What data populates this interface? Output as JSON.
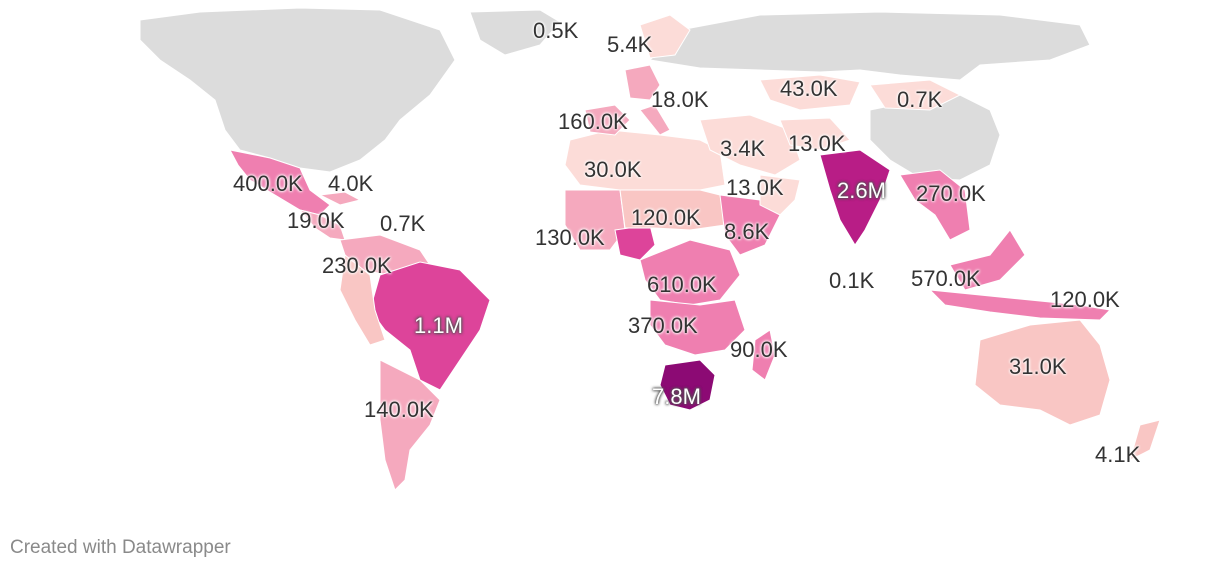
{
  "colors": {
    "no_data": "#dcdcdc",
    "scale": [
      "#fcdcd8",
      "#f9c6c4",
      "#f5a9be",
      "#ef7fb0",
      "#dd449a",
      "#b81d86",
      "#8c0a74"
    ]
  },
  "labels": [
    {
      "id": "iceland",
      "text": "0.5K",
      "inverse": false
    },
    {
      "id": "scandinavia",
      "text": "5.4K",
      "inverse": false
    },
    {
      "id": "central-europe",
      "text": "18.0K",
      "inverse": false
    },
    {
      "id": "western-europe",
      "text": "160.0K",
      "inverse": false
    },
    {
      "id": "kazakhstan",
      "text": "43.0K",
      "inverse": false
    },
    {
      "id": "mongolia",
      "text": "0.7K",
      "inverse": false
    },
    {
      "id": "middle-east",
      "text": "3.4K",
      "inverse": false
    },
    {
      "id": "central-asia",
      "text": "13.0K",
      "inverse": false
    },
    {
      "id": "north-africa",
      "text": "30.0K",
      "inverse": false
    },
    {
      "id": "horn-of-africa",
      "text": "13.0K",
      "inverse": false
    },
    {
      "id": "mexico",
      "text": "400.0K",
      "inverse": false
    },
    {
      "id": "caribbean",
      "text": "4.0K",
      "inverse": false
    },
    {
      "id": "central-america",
      "text": "19.0K",
      "inverse": false
    },
    {
      "id": "lesser-antilles",
      "text": "0.7K",
      "inverse": false
    },
    {
      "id": "sahel",
      "text": "120.0K",
      "inverse": false
    },
    {
      "id": "west-africa",
      "text": "130.0K",
      "inverse": false
    },
    {
      "id": "east-africa",
      "text": "8.6K",
      "inverse": false
    },
    {
      "id": "northern-south-america",
      "text": "230.0K",
      "inverse": false
    },
    {
      "id": "india",
      "text": "2.6M",
      "inverse": true
    },
    {
      "id": "southeast-asia",
      "text": "270.0K",
      "inverse": false
    },
    {
      "id": "central-africa",
      "text": "610.0K",
      "inverse": false
    },
    {
      "id": "maldives",
      "text": "0.1K",
      "inverse": false
    },
    {
      "id": "philippines-malaysia",
      "text": "570.0K",
      "inverse": false
    },
    {
      "id": "brazil",
      "text": "1.1M",
      "inverse": true
    },
    {
      "id": "indonesia",
      "text": "120.0K",
      "inverse": false
    },
    {
      "id": "southern-central-africa",
      "text": "370.0K",
      "inverse": false
    },
    {
      "id": "madagascar",
      "text": "90.0K",
      "inverse": false
    },
    {
      "id": "australia",
      "text": "31.0K",
      "inverse": false
    },
    {
      "id": "south-africa",
      "text": "7.8M",
      "inverse": true
    },
    {
      "id": "argentina",
      "text": "140.0K",
      "inverse": false
    },
    {
      "id": "new-zealand",
      "text": "4.1K",
      "inverse": false
    }
  ],
  "credit": "Created with Datawrapper"
}
